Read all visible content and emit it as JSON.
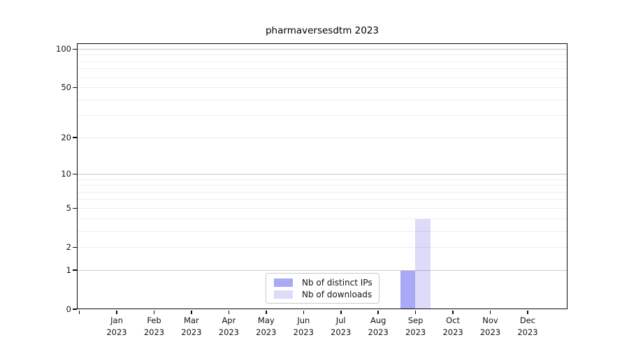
{
  "chart_data": {
    "type": "bar",
    "title": "pharmaversesdtm 2023",
    "x_categories": [
      {
        "label": "Jan",
        "year": "2023"
      },
      {
        "label": "Feb",
        "year": "2023"
      },
      {
        "label": "Mar",
        "year": "2023"
      },
      {
        "label": "Apr",
        "year": "2023"
      },
      {
        "label": "May",
        "year": "2023"
      },
      {
        "label": "Jun",
        "year": "2023"
      },
      {
        "label": "Jul",
        "year": "2023"
      },
      {
        "label": "Aug",
        "year": "2023"
      },
      {
        "label": "Sep",
        "year": "2023"
      },
      {
        "label": "Oct",
        "year": "2023"
      },
      {
        "label": "Nov",
        "year": "2023"
      },
      {
        "label": "Dec",
        "year": "2023"
      }
    ],
    "series": [
      {
        "name": "Nb of distinct IPs",
        "color": "#a9a9f7",
        "values": [
          0,
          0,
          0,
          0,
          0,
          0,
          0,
          0,
          1,
          0,
          0,
          0
        ]
      },
      {
        "name": "Nb of downloads",
        "color": "#dcdcfa",
        "values": [
          0,
          0,
          0,
          0,
          0,
          0,
          0,
          0,
          4,
          0,
          0,
          0
        ]
      }
    ],
    "y_axis": {
      "scale": "log1p",
      "tick_labels": [
        100,
        50,
        20,
        10,
        5,
        2,
        1,
        0
      ],
      "strong_gridlines": [
        1,
        10,
        100
      ],
      "faint_gridlines": [
        2,
        3,
        4,
        5,
        6,
        7,
        8,
        9,
        20,
        30,
        40,
        50,
        60,
        70,
        80,
        90
      ],
      "ylim": [
        0,
        111
      ]
    },
    "legend": {
      "position": "bottom-center",
      "entries": [
        "Nb of distinct IPs",
        "Nb of downloads"
      ]
    },
    "grid": true
  }
}
